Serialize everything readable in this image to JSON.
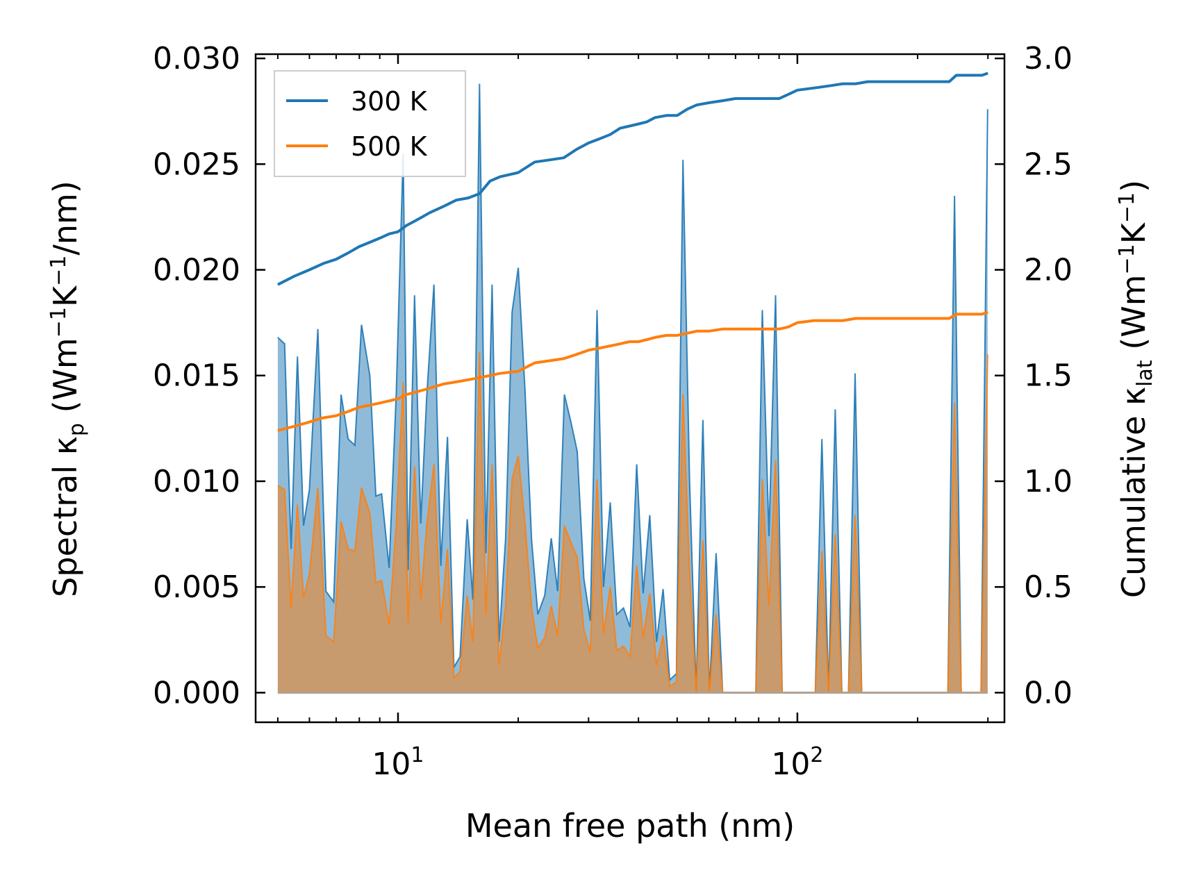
{
  "chart_data": {
    "type": "area",
    "xscale": "log",
    "xlabel": "Mean free path (nm)",
    "ylabel_left": {
      "main": "Spectral κ",
      "sub": "p",
      "units": "(Wm",
      "exp1": "−1",
      "mid": "K",
      "exp2": "−1",
      "tail": "/nm)"
    },
    "ylabel_right": {
      "main": "Cumulative κ",
      "sub": "lat",
      "units": "(Wm",
      "exp1": "−1",
      "mid": "K",
      "exp2": "−1",
      "tail": ")"
    },
    "xlim": [
      4.4,
      330
    ],
    "ylim_left": [
      -0.0014,
      0.0302
    ],
    "ylim_right": [
      -0.14,
      3.02
    ],
    "xticks": [
      {
        "value": 10,
        "base": "10",
        "exp": "1"
      },
      {
        "value": 100,
        "base": "10",
        "exp": "2"
      }
    ],
    "yticks_left": [
      "0.000",
      "0.005",
      "0.010",
      "0.015",
      "0.020",
      "0.025",
      "0.030"
    ],
    "yticks_right": [
      "0.0",
      "0.5",
      "1.0",
      "1.5",
      "2.0",
      "2.5",
      "3.0"
    ],
    "legend": {
      "position": "top-left",
      "entries": [
        "300 K",
        "500 K"
      ]
    },
    "colors": {
      "300K": "#1f77b4",
      "500K": "#ff7f0e",
      "fill300": "#1f77b4",
      "fill500": "#d9904a"
    },
    "spectral_300K": {
      "x": [
        5.0,
        5.2,
        5.4,
        5.6,
        5.8,
        6.0,
        6.3,
        6.6,
        6.9,
        7.2,
        7.5,
        7.8,
        8.1,
        8.5,
        8.8,
        9.1,
        9.5,
        9.9,
        10.3,
        10.6,
        11.0,
        11.4,
        11.8,
        12.3,
        12.8,
        13.3,
        13.8,
        14.3,
        14.9,
        15.4,
        16.0,
        16.6,
        17.2,
        17.9,
        18.6,
        19.3,
        20.0,
        20.8,
        21.6,
        22.4,
        23.3,
        24.2,
        25.1,
        26.1,
        27.1,
        28.1,
        29.2,
        30.3,
        31.5,
        32.7,
        34.0,
        35.3,
        36.7,
        38.1,
        39.6,
        41.1,
        42.7,
        44.4,
        46.1,
        47.9,
        49.8,
        51.7,
        53.7,
        55.8,
        58.0,
        60.2,
        62.6,
        65.0,
        67.5,
        70.2,
        72.9,
        75.7,
        78.7,
        81.7,
        84.9,
        88.2,
        91.6,
        95.2,
        98.9,
        102.8,
        106.8,
        110.9,
        115.2,
        119.7,
        124.4,
        129.2,
        134.3,
        139.5,
        144.9,
        150.6,
        156.4,
        162.5,
        168.8,
        175.4,
        182.3,
        189.4,
        196.7,
        204.4,
        212.4,
        220.6,
        229.2,
        238.2,
        247.4,
        257.1,
        267.1,
        277.5,
        288.3,
        299.5
      ],
      "y": [
        0.0168,
        0.0165,
        0.0068,
        0.0159,
        0.0079,
        0.0096,
        0.0172,
        0.0048,
        0.0043,
        0.0141,
        0.012,
        0.0117,
        0.0174,
        0.015,
        0.0093,
        0.0094,
        0.0059,
        0.0142,
        0.0255,
        0.0058,
        0.0188,
        0.008,
        0.014,
        0.0193,
        0.006,
        0.0121,
        0.0012,
        0.0017,
        0.0082,
        0.0044,
        0.0288,
        0.0066,
        0.0193,
        0.0024,
        0.0073,
        0.018,
        0.0201,
        0.0143,
        0.0072,
        0.0037,
        0.0046,
        0.0073,
        0.0048,
        0.0141,
        0.0128,
        0.0114,
        0.0054,
        0.0034,
        0.0181,
        0.005,
        0.009,
        0.0037,
        0.004,
        0.0031,
        0.0108,
        0.0047,
        0.0084,
        0.0024,
        0.0049,
        0.0006,
        0.0009,
        0.0252,
        0.01,
        0.0,
        0.0129,
        0.0,
        0.0066,
        0.0,
        0.0,
        0.0,
        0.0,
        0.0,
        0.0,
        0.0181,
        0.0074,
        0.0188,
        0.0,
        0.0,
        0.0,
        0.0,
        0.0,
        0.0,
        0.012,
        0.0,
        0.0134,
        0.0,
        0.0,
        0.0151,
        0.0,
        0.0,
        0.0,
        0.0,
        0.0,
        0.0,
        0.0,
        0.0,
        0.0,
        0.0,
        0.0,
        0.0,
        0.0,
        0.0,
        0.0235,
        0.0,
        0.0,
        0.0,
        0.0,
        0.0276
      ]
    },
    "spectral_500K": {
      "x": [
        5.0,
        5.2,
        5.4,
        5.6,
        5.8,
        6.0,
        6.3,
        6.6,
        6.9,
        7.2,
        7.5,
        7.8,
        8.1,
        8.5,
        8.8,
        9.1,
        9.5,
        9.9,
        10.3,
        10.6,
        11.0,
        11.4,
        11.8,
        12.3,
        12.8,
        13.3,
        13.8,
        14.3,
        14.9,
        15.4,
        16.0,
        16.6,
        17.2,
        17.9,
        18.6,
        19.3,
        20.0,
        20.8,
        21.6,
        22.4,
        23.3,
        24.2,
        25.1,
        26.1,
        27.1,
        28.1,
        29.2,
        30.3,
        31.5,
        32.7,
        34.0,
        35.3,
        36.7,
        38.1,
        39.6,
        41.1,
        42.7,
        44.4,
        46.1,
        47.9,
        49.8,
        51.7,
        53.7,
        55.8,
        58.0,
        60.2,
        62.6,
        65.0,
        67.5,
        70.2,
        72.9,
        75.7,
        78.7,
        81.7,
        84.9,
        88.2,
        91.6,
        95.2,
        98.9,
        102.8,
        106.8,
        110.9,
        115.2,
        119.7,
        124.4,
        129.2,
        134.3,
        139.5,
        144.9,
        150.6,
        156.4,
        162.5,
        168.8,
        175.4,
        182.3,
        189.4,
        196.7,
        204.4,
        212.4,
        220.6,
        229.2,
        238.2,
        247.4,
        257.1,
        267.1,
        277.5,
        288.3,
        299.5
      ],
      "y": [
        0.0098,
        0.0096,
        0.004,
        0.0089,
        0.0045,
        0.0056,
        0.0097,
        0.0027,
        0.0024,
        0.0081,
        0.0068,
        0.0067,
        0.0097,
        0.0085,
        0.0052,
        0.0053,
        0.0032,
        0.008,
        0.0147,
        0.0033,
        0.0107,
        0.0044,
        0.0079,
        0.0108,
        0.0033,
        0.0068,
        0.0007,
        0.001,
        0.0046,
        0.0024,
        0.0161,
        0.0037,
        0.0108,
        0.0013,
        0.0041,
        0.0101,
        0.0112,
        0.008,
        0.004,
        0.0021,
        0.0026,
        0.0041,
        0.0027,
        0.0079,
        0.0071,
        0.0064,
        0.003,
        0.0019,
        0.0101,
        0.0028,
        0.005,
        0.002,
        0.0022,
        0.0017,
        0.006,
        0.0026,
        0.0047,
        0.0013,
        0.0027,
        0.0003,
        0.0005,
        0.0141,
        0.0056,
        0.0,
        0.0072,
        0.0,
        0.0037,
        0.0,
        0.0,
        0.0,
        0.0,
        0.0,
        0.0,
        0.0101,
        0.0041,
        0.011,
        0.0,
        0.0,
        0.0,
        0.0,
        0.0,
        0.0,
        0.0067,
        0.0,
        0.0075,
        0.0,
        0.0,
        0.0084,
        0.0,
        0.0,
        0.0,
        0.0,
        0.0,
        0.0,
        0.0,
        0.0,
        0.0,
        0.0,
        0.0,
        0.0,
        0.0,
        0.0,
        0.0137,
        0.0,
        0.0,
        0.0,
        0.0,
        0.016
      ]
    },
    "cumulative_300K": {
      "x": [
        5.0,
        5.5,
        6.0,
        6.5,
        7.0,
        7.5,
        8.0,
        8.5,
        9.0,
        9.5,
        10.0,
        10.5,
        11.0,
        11.5,
        12.0,
        13.0,
        14.0,
        15.0,
        16.0,
        17.0,
        18.0,
        20.0,
        22.0,
        24.0,
        26.0,
        28.0,
        30.0,
        32.0,
        34.0,
        36.0,
        38.0,
        40.0,
        42.0,
        44.0,
        47.0,
        50.0,
        53.0,
        56.0,
        60.0,
        65.0,
        70.0,
        80.0,
        90.0,
        95.0,
        100.0,
        110.0,
        120.0,
        130.0,
        140.0,
        150.0,
        200.0,
        240.0,
        250.0,
        290.0,
        300.0
      ],
      "y": [
        1.93,
        1.97,
        2.0,
        2.03,
        2.05,
        2.08,
        2.11,
        2.13,
        2.15,
        2.17,
        2.18,
        2.21,
        2.23,
        2.25,
        2.27,
        2.3,
        2.33,
        2.34,
        2.36,
        2.42,
        2.44,
        2.46,
        2.51,
        2.52,
        2.53,
        2.57,
        2.6,
        2.62,
        2.64,
        2.67,
        2.68,
        2.69,
        2.7,
        2.72,
        2.73,
        2.73,
        2.76,
        2.78,
        2.79,
        2.8,
        2.81,
        2.81,
        2.81,
        2.83,
        2.85,
        2.86,
        2.87,
        2.88,
        2.88,
        2.89,
        2.89,
        2.89,
        2.92,
        2.92,
        2.93
      ]
    },
    "cumulative_500K": {
      "x": [
        5.0,
        5.5,
        6.0,
        6.5,
        7.0,
        7.5,
        8.0,
        8.5,
        9.0,
        9.5,
        10.0,
        10.5,
        11.0,
        11.5,
        12.0,
        13.0,
        14.0,
        15.0,
        16.0,
        17.0,
        18.0,
        20.0,
        22.0,
        24.0,
        26.0,
        28.0,
        30.0,
        32.0,
        34.0,
        36.0,
        38.0,
        40.0,
        42.0,
        44.0,
        47.0,
        50.0,
        53.0,
        56.0,
        60.0,
        65.0,
        70.0,
        80.0,
        90.0,
        95.0,
        100.0,
        110.0,
        120.0,
        130.0,
        140.0,
        150.0,
        200.0,
        240.0,
        250.0,
        290.0,
        300.0
      ],
      "y": [
        1.24,
        1.26,
        1.28,
        1.3,
        1.31,
        1.33,
        1.35,
        1.36,
        1.37,
        1.38,
        1.39,
        1.41,
        1.42,
        1.43,
        1.44,
        1.46,
        1.47,
        1.48,
        1.49,
        1.5,
        1.51,
        1.52,
        1.56,
        1.57,
        1.58,
        1.6,
        1.62,
        1.63,
        1.64,
        1.65,
        1.66,
        1.66,
        1.67,
        1.68,
        1.69,
        1.69,
        1.7,
        1.71,
        1.71,
        1.72,
        1.72,
        1.72,
        1.72,
        1.73,
        1.75,
        1.76,
        1.76,
        1.76,
        1.77,
        1.77,
        1.77,
        1.77,
        1.79,
        1.79,
        1.8
      ]
    }
  }
}
